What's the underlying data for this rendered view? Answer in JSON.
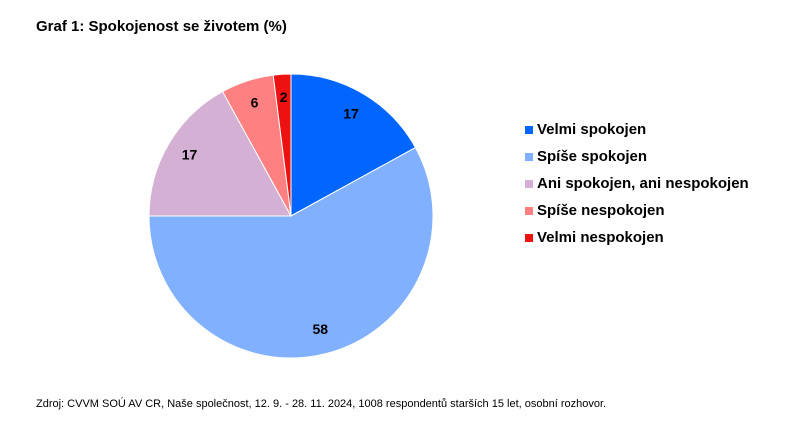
{
  "chart_data": {
    "type": "pie",
    "title": "Graf 1: Spokojenost se životem (%)",
    "categories": [
      "Velmi spokojen",
      "Spíše spokojen",
      "Ani spokojen, ani nespokojen",
      "Spíše nespokojen",
      "Velmi nespokojen"
    ],
    "values": [
      17,
      58,
      17,
      6,
      2
    ],
    "colors": [
      "#0066ff",
      "#80b0ff",
      "#d4b0d4",
      "#ff8080",
      "#ee1111"
    ],
    "legend": "right",
    "source": "Zdroj: CVVM SOÚ AV CR, Naše společnost, 12. 9. - 28. 11. 2024, 1008 respondentů starších 15 let, osobní rozhovor."
  }
}
